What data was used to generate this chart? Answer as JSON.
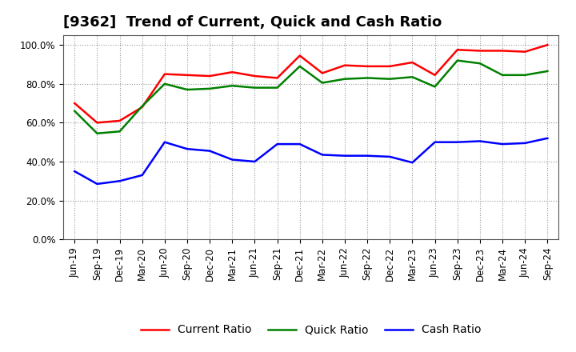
{
  "title": "[9362]  Trend of Current, Quick and Cash Ratio",
  "x_labels": [
    "Jun-19",
    "Sep-19",
    "Dec-19",
    "Mar-20",
    "Jun-20",
    "Sep-20",
    "Dec-20",
    "Mar-21",
    "Jun-21",
    "Sep-21",
    "Dec-21",
    "Mar-22",
    "Jun-22",
    "Sep-22",
    "Dec-22",
    "Mar-23",
    "Jun-23",
    "Sep-23",
    "Dec-23",
    "Mar-24",
    "Jun-24",
    "Sep-24"
  ],
  "current_ratio": [
    0.7,
    0.6,
    0.61,
    0.68,
    0.85,
    0.845,
    0.84,
    0.86,
    0.84,
    0.83,
    0.945,
    0.855,
    0.895,
    0.89,
    0.89,
    0.91,
    0.845,
    0.975,
    0.97,
    0.97,
    0.965,
    1.0
  ],
  "quick_ratio": [
    0.66,
    0.545,
    0.555,
    0.685,
    0.8,
    0.77,
    0.775,
    0.79,
    0.78,
    0.78,
    0.89,
    0.805,
    0.825,
    0.83,
    0.825,
    0.835,
    0.785,
    0.92,
    0.905,
    0.845,
    0.845,
    0.865
  ],
  "cash_ratio": [
    0.35,
    0.285,
    0.3,
    0.33,
    0.5,
    0.465,
    0.455,
    0.41,
    0.4,
    0.49,
    0.49,
    0.435,
    0.43,
    0.43,
    0.425,
    0.395,
    0.5,
    0.5,
    0.505,
    0.49,
    0.495,
    0.52
  ],
  "current_color": "#FF0000",
  "quick_color": "#008000",
  "cash_color": "#0000FF",
  "ylim": [
    0.0,
    1.05
  ],
  "yticks": [
    0.0,
    0.2,
    0.4,
    0.6,
    0.8,
    1.0
  ],
  "background_color": "#FFFFFF",
  "plot_bg_color": "#FFFFFF",
  "grid_color": "#999999",
  "title_fontsize": 13,
  "tick_fontsize": 8.5,
  "legend_labels": [
    "Current Ratio",
    "Quick Ratio",
    "Cash Ratio"
  ],
  "legend_fontsize": 10
}
